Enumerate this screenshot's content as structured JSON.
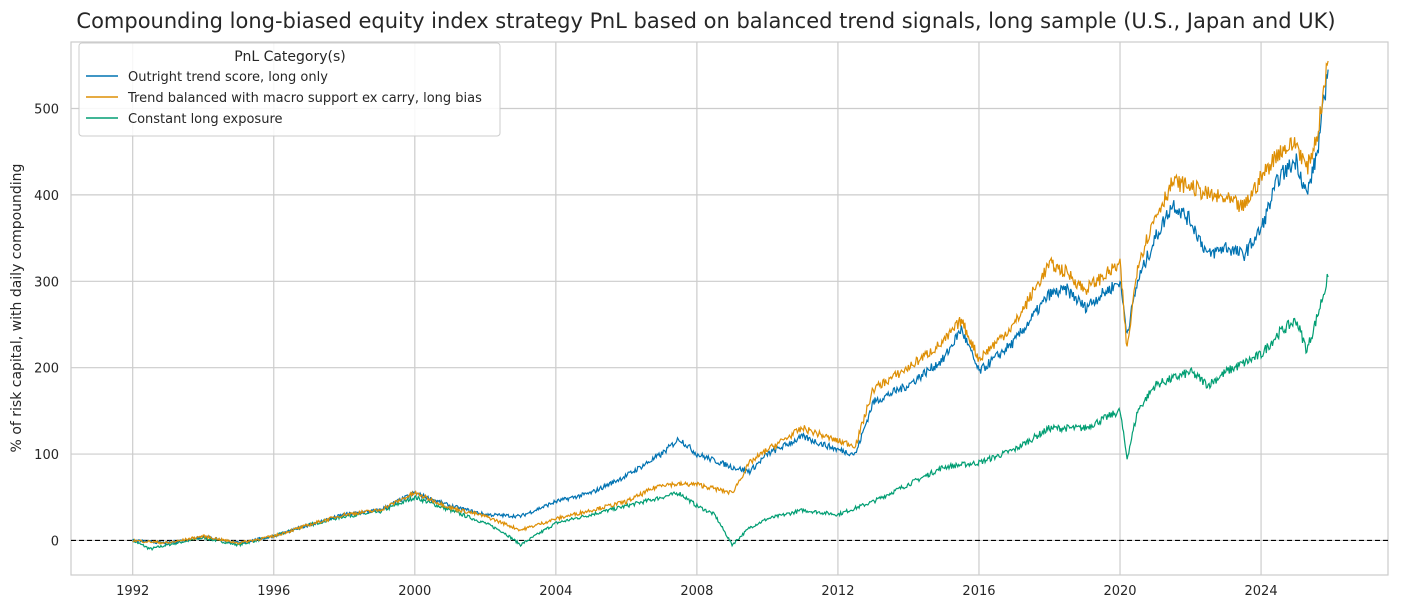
{
  "chart_data": {
    "type": "line",
    "title": "Compounding long-biased equity index strategy PnL based on balanced trend signals, long sample (U.S., Japan and UK)",
    "xlabel": "",
    "ylabel": "% of risk capital, with daily compounding",
    "xlim": [
      1990.25,
      2027.6
    ],
    "ylim": [
      -40,
      577
    ],
    "x_ticks": [
      "1992",
      "1996",
      "2000",
      "2004",
      "2008",
      "2012",
      "2016",
      "2020",
      "2024"
    ],
    "y_ticks": [
      "0",
      "100",
      "200",
      "300",
      "400",
      "500"
    ],
    "grid": true,
    "zero_line": {
      "y": 0,
      "style": "dashed",
      "color": "#000000"
    },
    "legend": {
      "title": "PnL Category(s)",
      "placement": "top-left"
    },
    "series": [
      {
        "name": "Outright trend score, long only",
        "color": "#0173b2",
        "x": [
          1992,
          1993,
          1994,
          1995,
          1996,
          1997,
          1998,
          1999,
          2000,
          2001,
          2002,
          2003,
          2004,
          2005,
          2006,
          2007,
          2007.5,
          2008,
          2009,
          2009.5,
          2010,
          2011,
          2012,
          2012.5,
          2013,
          2014,
          2015,
          2015.5,
          2016,
          2017,
          2018,
          2018.5,
          2019,
          2020,
          2020.2,
          2020.5,
          2021,
          2021.5,
          2022,
          2022.5,
          2023,
          2023.5,
          2024,
          2024.5,
          2025,
          2025.3,
          2025.6,
          2025.9
        ],
        "y": [
          0,
          -3,
          5,
          -3,
          5,
          18,
          30,
          35,
          55,
          40,
          30,
          28,
          45,
          55,
          75,
          100,
          118,
          100,
          85,
          80,
          100,
          120,
          105,
          100,
          160,
          180,
          210,
          245,
          195,
          230,
          285,
          290,
          270,
          300,
          240,
          300,
          350,
          390,
          370,
          330,
          340,
          330,
          360,
          420,
          440,
          400,
          450,
          545
        ]
      },
      {
        "name": "Trend balanced with macro support ex carry, long bias",
        "color": "#de8f05",
        "x": [
          1992,
          1993,
          1994,
          1995,
          1996,
          1997,
          1998,
          1999,
          2000,
          2001,
          2002,
          2003,
          2004,
          2005,
          2006,
          2007,
          2008,
          2009,
          2009.5,
          2010,
          2011,
          2012,
          2012.5,
          2013,
          2014,
          2015,
          2015.5,
          2016,
          2017,
          2018,
          2018.5,
          2019,
          2020,
          2020.2,
          2020.5,
          2021,
          2021.5,
          2022,
          2022.5,
          2023,
          2023.5,
          2024,
          2024.5,
          2025,
          2025.3,
          2025.6,
          2025.9
        ],
        "y": [
          0,
          -3,
          5,
          -3,
          5,
          18,
          30,
          35,
          55,
          38,
          28,
          12,
          25,
          35,
          45,
          65,
          65,
          55,
          90,
          105,
          130,
          115,
          110,
          175,
          200,
          230,
          255,
          210,
          250,
          320,
          310,
          290,
          320,
          220,
          320,
          375,
          415,
          410,
          400,
          395,
          385,
          420,
          450,
          460,
          430,
          470,
          555
        ]
      },
      {
        "name": "Constant long exposure",
        "color": "#029e73",
        "x": [
          1992,
          1992.5,
          1993,
          1994,
          1995,
          1996,
          1997,
          1998,
          1999,
          2000,
          2001,
          2002,
          2002.5,
          2003,
          2004,
          2005,
          2006,
          2007,
          2007.5,
          2008,
          2008.5,
          2009,
          2009.5,
          2010,
          2011,
          2012,
          2013,
          2014,
          2015,
          2016,
          2017,
          2018,
          2019,
          2020,
          2020.2,
          2020.5,
          2021,
          2022,
          2022.5,
          2023,
          2024,
          2024.5,
          2025,
          2025.3,
          2025.6,
          2025.9
        ],
        "y": [
          0,
          -10,
          -5,
          3,
          -5,
          5,
          18,
          28,
          33,
          50,
          35,
          20,
          10,
          -5,
          20,
          30,
          40,
          50,
          55,
          40,
          30,
          -5,
          15,
          25,
          35,
          30,
          45,
          65,
          85,
          90,
          105,
          130,
          130,
          150,
          95,
          150,
          180,
          195,
          180,
          195,
          215,
          240,
          255,
          220,
          260,
          305
        ]
      }
    ]
  }
}
